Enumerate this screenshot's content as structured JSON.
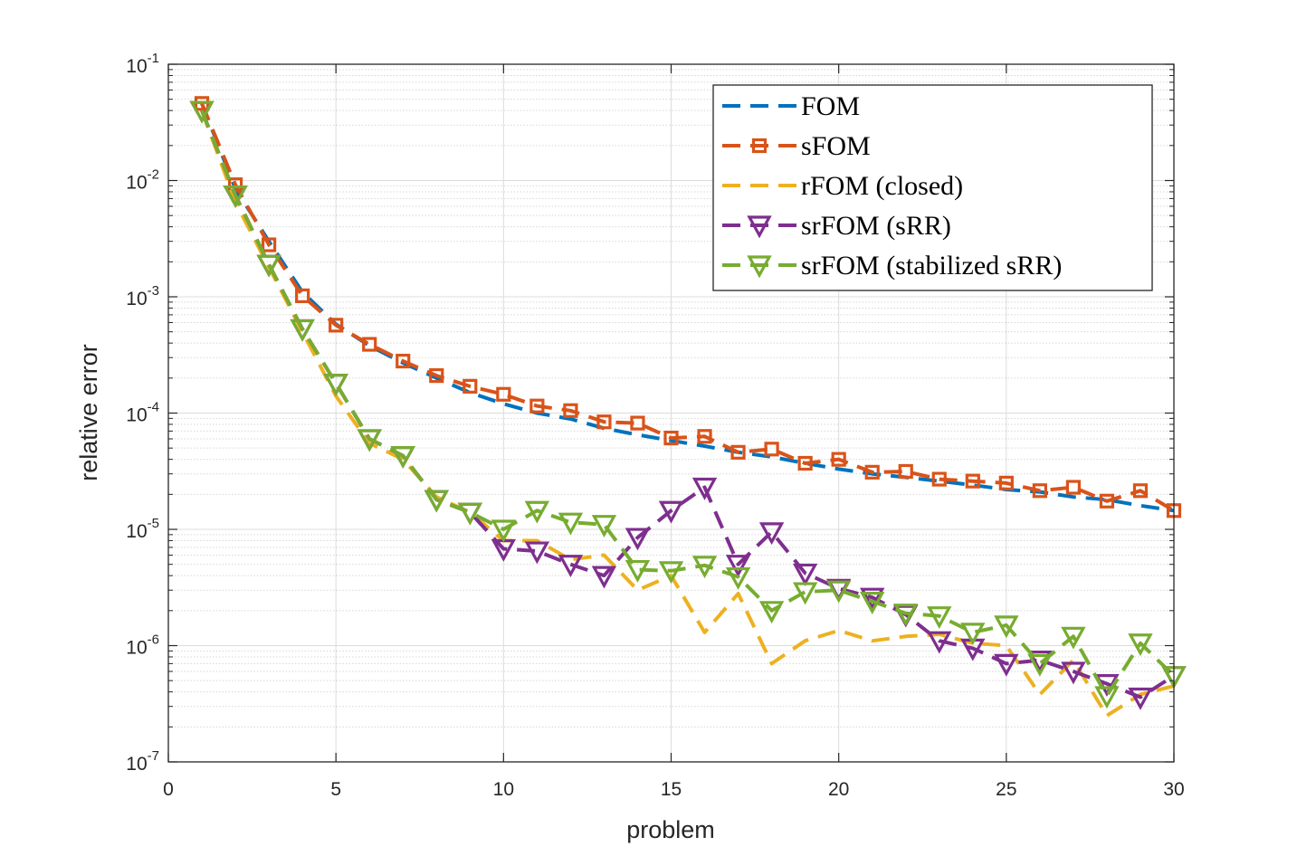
{
  "chart_data": {
    "type": "line",
    "xlabel": "problem",
    "ylabel": "relative error",
    "xlim": [
      0,
      30
    ],
    "ylim": [
      1e-07,
      0.1
    ],
    "yscale": "log",
    "grid": true,
    "minor_grid": true,
    "legend_position": "top-right",
    "x_ticks": [
      "0",
      "5",
      "10",
      "15",
      "20",
      "25",
      "30"
    ],
    "y_ticks": [
      {
        "base": "10",
        "exp": "-7"
      },
      {
        "base": "10",
        "exp": "-6"
      },
      {
        "base": "10",
        "exp": "-5"
      },
      {
        "base": "10",
        "exp": "-4"
      },
      {
        "base": "10",
        "exp": "-3"
      },
      {
        "base": "10",
        "exp": "-2"
      },
      {
        "base": "10",
        "exp": "-1"
      }
    ],
    "x": [
      1,
      2,
      3,
      4,
      5,
      6,
      7,
      8,
      9,
      10,
      11,
      12,
      13,
      14,
      15,
      16,
      17,
      18,
      19,
      20,
      21,
      22,
      23,
      24,
      25,
      26,
      27,
      28,
      29,
      30
    ],
    "series": [
      {
        "name": "FOM",
        "color": "#0072BD",
        "marker": "none",
        "values": [
          0.046,
          0.0085,
          0.003,
          0.0011,
          0.00058,
          0.00038,
          0.00027,
          0.0002,
          0.00015,
          0.00012,
          0.0001,
          8.9e-05,
          7.4e-05,
          6.5e-05,
          5.8e-05,
          5.2e-05,
          4.6e-05,
          4.2e-05,
          3.7e-05,
          3.3e-05,
          3e-05,
          2.8e-05,
          2.6e-05,
          2.4e-05,
          2.2e-05,
          2.1e-05,
          1.9e-05,
          1.8e-05,
          1.6e-05,
          1.45e-05
        ]
      },
      {
        "name": "sFOM",
        "color": "#D95319",
        "marker": "square",
        "values": [
          0.046,
          0.0092,
          0.0028,
          0.00102,
          0.00057,
          0.00039,
          0.00028,
          0.00021,
          0.00017,
          0.000145,
          0.000115,
          0.000105,
          8.4e-05,
          8.2e-05,
          6.1e-05,
          6.3e-05,
          4.6e-05,
          4.9e-05,
          3.7e-05,
          4e-05,
          3.1e-05,
          3.15e-05,
          2.7e-05,
          2.6e-05,
          2.5e-05,
          2.15e-05,
          2.3e-05,
          1.75e-05,
          2.15e-05,
          1.45e-05
        ]
      },
      {
        "name": "rFOM (closed)",
        "color": "#EDB120",
        "marker": "none",
        "values": [
          0.04,
          0.0065,
          0.0018,
          0.0005,
          0.00014,
          5.5e-05,
          4e-05,
          1.9e-05,
          1.4e-05,
          8e-06,
          8e-06,
          5.5e-06,
          6e-06,
          3e-06,
          4e-06,
          1.3e-06,
          2.8e-06,
          7e-07,
          1.1e-06,
          1.35e-06,
          1.1e-06,
          1.2e-06,
          1.25e-06,
          1.05e-06,
          1e-06,
          3.8e-07,
          7.5e-07,
          2.5e-07,
          3.8e-07,
          4.5e-07
        ]
      },
      {
        "name": "srFOM (sRR)",
        "color": "#7E2F8E",
        "marker": "triangle-down",
        "values": [
          0.04,
          0.0075,
          0.0019,
          0.00053,
          0.00018,
          6e-05,
          4.3e-05,
          1.8e-05,
          1.4e-05,
          6.8e-06,
          6.5e-06,
          5e-06,
          4e-06,
          8.5e-06,
          1.45e-05,
          2.3e-05,
          5e-06,
          9.5e-06,
          4.2e-06,
          3.1e-06,
          2.6e-06,
          1.85e-06,
          1.1e-06,
          9.5e-07,
          7e-07,
          7.5e-07,
          6e-07,
          4.7e-07,
          3.6e-07,
          5.5e-07
        ]
      },
      {
        "name": "srFOM (stabilized sRR)",
        "color": "#77AC30",
        "marker": "triangle-down",
        "values": [
          0.04,
          0.0075,
          0.0019,
          0.00053,
          0.00018,
          6e-05,
          4.3e-05,
          1.8e-05,
          1.4e-05,
          1e-05,
          1.45e-05,
          1.15e-05,
          1.1e-05,
          4.5e-06,
          4.4e-06,
          4.9e-06,
          3.9e-06,
          2e-06,
          2.9e-06,
          3e-06,
          2.4e-06,
          1.9e-06,
          1.8e-06,
          1.3e-06,
          1.5e-06,
          7e-07,
          1.2e-06,
          3.7e-07,
          1.05e-06,
          5.5e-07
        ]
      }
    ]
  }
}
